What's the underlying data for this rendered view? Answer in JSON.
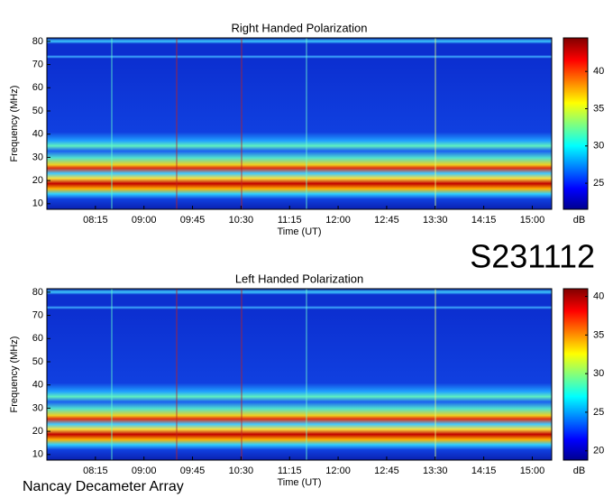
{
  "chart_data": [
    {
      "type": "spectrogram",
      "title": "Right Handed Polarization",
      "xlabel": "Time (UT)",
      "ylabel": "Frequency (MHz)",
      "xlim": [
        450,
        918
      ],
      "xticks": [
        {
          "value": 495,
          "label": "08:15"
        },
        {
          "value": 540,
          "label": "09:00"
        },
        {
          "value": 585,
          "label": "09:45"
        },
        {
          "value": 630,
          "label": "10:30"
        },
        {
          "value": 675,
          "label": "11:15"
        },
        {
          "value": 720,
          "label": "12:00"
        },
        {
          "value": 765,
          "label": "12:45"
        },
        {
          "value": 810,
          "label": "13:30"
        },
        {
          "value": 855,
          "label": "14:15"
        },
        {
          "value": 900,
          "label": "15:00"
        }
      ],
      "ylim": [
        7.6,
        81.5
      ],
      "yticks": [
        10,
        20,
        30,
        40,
        50,
        60,
        70,
        80
      ],
      "colorbar": {
        "label": "dB",
        "lim": [
          21.5,
          44.5
        ],
        "ticks": [
          25,
          30,
          35,
          40
        ]
      }
    },
    {
      "type": "spectrogram",
      "title": "Left Handed Polarization",
      "xlabel": "Time (UT)",
      "ylabel": "Frequency (MHz)",
      "xlim": [
        450,
        918
      ],
      "xticks": [
        {
          "value": 495,
          "label": "08:15"
        },
        {
          "value": 540,
          "label": "09:00"
        },
        {
          "value": 585,
          "label": "09:45"
        },
        {
          "value": 630,
          "label": "10:30"
        },
        {
          "value": 675,
          "label": "11:15"
        },
        {
          "value": 720,
          "label": "12:00"
        },
        {
          "value": 765,
          "label": "12:45"
        },
        {
          "value": 810,
          "label": "13:30"
        },
        {
          "value": 855,
          "label": "14:15"
        },
        {
          "value": 900,
          "label": "15:00"
        }
      ],
      "ylim": [
        7.6,
        81.5
      ],
      "yticks": [
        10,
        20,
        30,
        40,
        50,
        60,
        70,
        80
      ],
      "colorbar": {
        "label": "dB",
        "lim": [
          18.8,
          41
        ],
        "ticks": [
          20,
          25,
          30,
          35,
          40
        ]
      }
    }
  ],
  "date_label": "S231112",
  "footer": "Nancay Decameter Array"
}
